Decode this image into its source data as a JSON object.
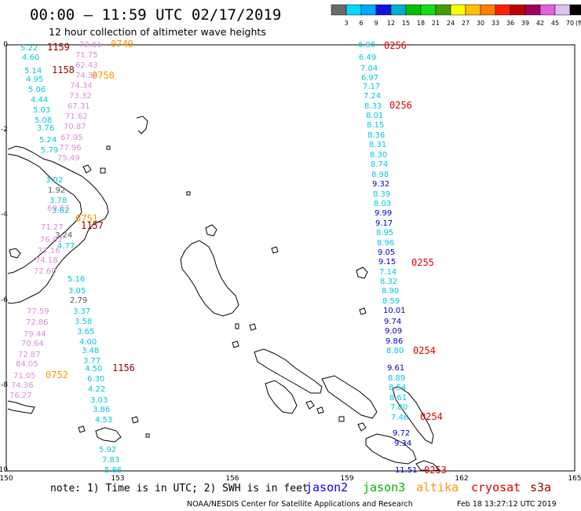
{
  "header": {
    "title": "00:00 – 11:59 UTC 02/17/2019",
    "subtitle": "12 hour collection of altimeter wave heights"
  },
  "legend": {
    "ticks": [
      "3",
      "6",
      "9",
      "12",
      "15",
      "18",
      "21",
      "24",
      "27",
      "30",
      "33",
      "36",
      "39",
      "42",
      "45",
      "70",
      "(ft)"
    ],
    "colors": [
      "#6b6b6b",
      "#00d8ff",
      "#00a8ff",
      "#1010e0",
      "#00b0d0",
      "#00c000",
      "#10e010",
      "#40a000",
      "#ffff00",
      "#ffc000",
      "#ff8000",
      "#ff2000",
      "#c00000",
      "#a00060",
      "#e060e0",
      "#e0c0f0",
      "#000000"
    ]
  },
  "axes": {
    "x_labels": [
      "150",
      "153",
      "156",
      "159",
      "162",
      "165"
    ],
    "y_labels": [
      "0",
      "-2",
      "-4",
      "-6",
      "-8",
      "-10"
    ]
  },
  "satellite_colors": {
    "jason2": "#0000ff",
    "jason3": "#00b400",
    "altika": "#ff9600",
    "cryosat": "#dc0000",
    "s3a": "#9b0000",
    "light": "#00c8dc",
    "dark": "#0000cc",
    "pink": "#dc8cdc",
    "gray": "#555555"
  },
  "track_labels": {
    "left_values": [
      {
        "t": "5.22",
        "c": "light"
      },
      {
        "t": "72.81",
        "c": "pink"
      },
      {
        "t": "4.60",
        "c": "light"
      },
      {
        "t": "71.75",
        "c": "pink"
      },
      {
        "t": "62.43",
        "c": "pink"
      },
      {
        "t": "5.14",
        "c": "light"
      },
      {
        "t": "74.34",
        "c": "pink"
      },
      {
        "t": "4.95",
        "c": "light"
      },
      {
        "t": "74.34",
        "c": "pink"
      },
      {
        "t": "5.06",
        "c": "light"
      },
      {
        "t": "73.32",
        "c": "pink"
      },
      {
        "t": "4.44",
        "c": "light"
      },
      {
        "t": "67.31",
        "c": "pink"
      },
      {
        "t": "5.03",
        "c": "light"
      },
      {
        "t": "71.62",
        "c": "pink"
      },
      {
        "t": "5.08",
        "c": "light"
      },
      {
        "t": "70.87",
        "c": "pink"
      },
      {
        "t": "3.76",
        "c": "light"
      },
      {
        "t": "67.95",
        "c": "pink"
      },
      {
        "t": "5.24",
        "c": "light"
      },
      {
        "t": "77.96",
        "c": "pink"
      },
      {
        "t": "5.79",
        "c": "light"
      },
      {
        "t": "75.49",
        "c": "pink"
      },
      {
        "t": "3.02",
        "c": "light"
      },
      {
        "t": "1.92",
        "c": "gray"
      },
      {
        "t": "3.78",
        "c": "light"
      },
      {
        "t": "69.63",
        "c": "pink"
      },
      {
        "t": "3.62",
        "c": "light"
      },
      {
        "t": "71.27",
        "c": "pink"
      },
      {
        "t": "3.24",
        "c": "gray"
      },
      {
        "t": "76.02",
        "c": "pink"
      },
      {
        "t": "4.77",
        "c": "light"
      },
      {
        "t": "73.16",
        "c": "pink"
      },
      {
        "t": "74.18",
        "c": "pink"
      },
      {
        "t": "72.60",
        "c": "pink"
      },
      {
        "t": "5.16",
        "c": "light"
      },
      {
        "t": "3.05",
        "c": "light"
      },
      {
        "t": "2.79",
        "c": "gray"
      },
      {
        "t": "77.59",
        "c": "pink"
      },
      {
        "t": "3.37",
        "c": "light"
      },
      {
        "t": "72.86",
        "c": "pink"
      },
      {
        "t": "3.58",
        "c": "light"
      },
      {
        "t": "79.44",
        "c": "pink"
      },
      {
        "t": "3.65",
        "c": "light"
      },
      {
        "t": "70.64",
        "c": "pink"
      },
      {
        "t": "4.00",
        "c": "light"
      },
      {
        "t": "72.87",
        "c": "pink"
      },
      {
        "t": "3.48",
        "c": "light"
      },
      {
        "t": "84.05",
        "c": "pink"
      },
      {
        "t": "3.77",
        "c": "light"
      },
      {
        "t": "71.05",
        "c": "pink"
      },
      {
        "t": "4.50",
        "c": "light"
      },
      {
        "t": "6.30",
        "c": "light"
      },
      {
        "t": "74.36",
        "c": "pink"
      },
      {
        "t": "4.22",
        "c": "light"
      },
      {
        "t": "76.27",
        "c": "pink"
      },
      {
        "t": "3.03",
        "c": "light"
      },
      {
        "t": "3.86",
        "c": "light"
      },
      {
        "t": "4.53",
        "c": "light"
      },
      {
        "t": "5.92",
        "c": "light"
      },
      {
        "t": "7.83",
        "c": "light"
      },
      {
        "t": "5.86",
        "c": "light"
      }
    ],
    "left_times": [
      {
        "t": "1159",
        "c": "s3a"
      },
      {
        "t": "0749",
        "c": "altika"
      },
      {
        "t": "1158",
        "c": "s3a"
      },
      {
        "t": "0750",
        "c": "altika"
      },
      {
        "t": "0751",
        "c": "altika"
      },
      {
        "t": "1157",
        "c": "s3a"
      },
      {
        "t": "1156",
        "c": "s3a"
      },
      {
        "t": "0752",
        "c": "altika"
      }
    ],
    "right_values": [
      {
        "t": "6.96",
        "c": "light"
      },
      {
        "t": "6.49",
        "c": "light"
      },
      {
        "t": "7.04",
        "c": "light"
      },
      {
        "t": "6.97",
        "c": "light"
      },
      {
        "t": "7.17",
        "c": "light"
      },
      {
        "t": "7.24",
        "c": "light"
      },
      {
        "t": "8.33",
        "c": "light"
      },
      {
        "t": "8.01",
        "c": "light"
      },
      {
        "t": "8.15",
        "c": "light"
      },
      {
        "t": "8.36",
        "c": "light"
      },
      {
        "t": "8.31",
        "c": "light"
      },
      {
        "t": "8.30",
        "c": "light"
      },
      {
        "t": "8.74",
        "c": "light"
      },
      {
        "t": "8.98",
        "c": "light"
      },
      {
        "t": "9.32",
        "c": "dark"
      },
      {
        "t": "8.39",
        "c": "light"
      },
      {
        "t": "8.03",
        "c": "light"
      },
      {
        "t": "9.99",
        "c": "dark"
      },
      {
        "t": "9.17",
        "c": "dark"
      },
      {
        "t": "8.95",
        "c": "light"
      },
      {
        "t": "8.96",
        "c": "light"
      },
      {
        "t": "9.05",
        "c": "dark"
      },
      {
        "t": "9.15",
        "c": "dark"
      },
      {
        "t": "7.14",
        "c": "light"
      },
      {
        "t": "8.32",
        "c": "light"
      },
      {
        "t": "8.90",
        "c": "light"
      },
      {
        "t": "8.59",
        "c": "light"
      },
      {
        "t": "10.01",
        "c": "dark"
      },
      {
        "t": "9.74",
        "c": "dark"
      },
      {
        "t": "9.09",
        "c": "dark"
      },
      {
        "t": "9.86",
        "c": "dark"
      },
      {
        "t": "8.80",
        "c": "light"
      },
      {
        "t": "9.61",
        "c": "dark"
      },
      {
        "t": "8.89",
        "c": "light"
      },
      {
        "t": "8.54",
        "c": "light"
      },
      {
        "t": "8.61",
        "c": "light"
      },
      {
        "t": "7.80",
        "c": "light"
      },
      {
        "t": "7.46",
        "c": "light"
      },
      {
        "t": "9.72",
        "c": "dark"
      },
      {
        "t": "9.34",
        "c": "dark"
      },
      {
        "t": "11.51",
        "c": "dark"
      }
    ],
    "right_times": [
      {
        "t": "0256",
        "c": "cryosat"
      },
      {
        "t": "0256",
        "c": "cryosat"
      },
      {
        "t": "0255",
        "c": "cryosat"
      },
      {
        "t": "0254",
        "c": "cryosat"
      },
      {
        "t": "0254",
        "c": "cryosat"
      },
      {
        "t": "0253",
        "c": "cryosat"
      }
    ]
  },
  "footer": {
    "note": "note: 1) Time is in UTC; 2) SWH is in feet",
    "sat_names": {
      "jason2": "jason2",
      "jason3": "jason3",
      "altika": "altika",
      "cryosat": "cryosat",
      "s3a": "s3a"
    },
    "credit": "NOAA/NESDIS Center for Satellite Applications and Research",
    "timestamp": "Feb 18 13:27:12 UTC 2019"
  }
}
